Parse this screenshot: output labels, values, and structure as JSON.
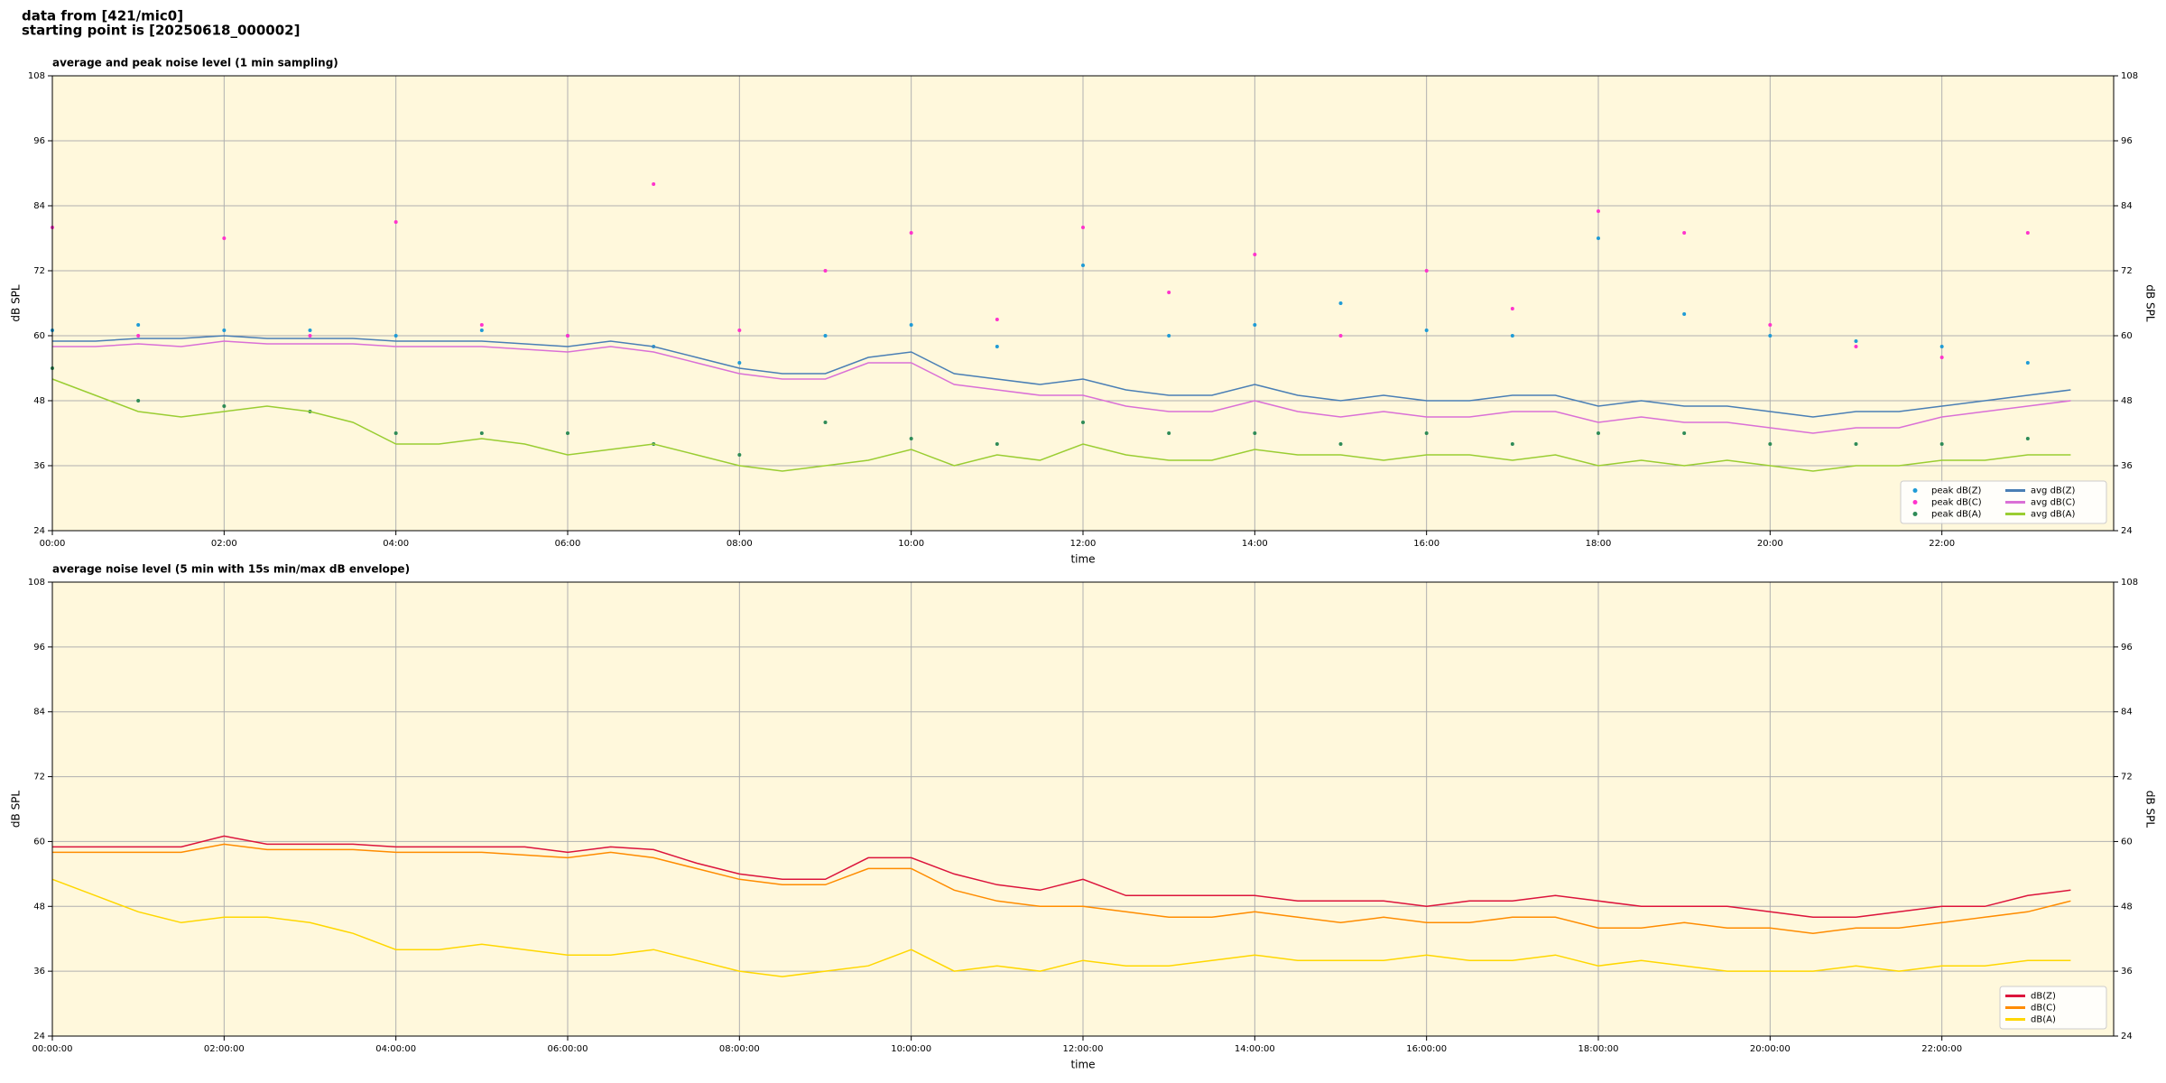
{
  "header": {
    "lines": [
      "data from [421/mic0]",
      "starting point is [20250618_000002]"
    ]
  },
  "chart_data": [
    {
      "type": "line",
      "title": "average and peak noise level (1 min sampling)",
      "xlabel": "time",
      "ylabel": "dB SPL",
      "background": "#fff8dc",
      "grid": true,
      "legend": "lower right",
      "xlim": [
        0,
        1440
      ],
      "xticks": [
        {
          "value": 0,
          "label": "00:00"
        },
        {
          "value": 120,
          "label": "02:00"
        },
        {
          "value": 240,
          "label": "04:00"
        },
        {
          "value": 360,
          "label": "06:00"
        },
        {
          "value": 480,
          "label": "08:00"
        },
        {
          "value": 600,
          "label": "10:00"
        },
        {
          "value": 720,
          "label": "12:00"
        },
        {
          "value": 840,
          "label": "14:00"
        },
        {
          "value": 960,
          "label": "16:00"
        },
        {
          "value": 1080,
          "label": "18:00"
        },
        {
          "value": 1200,
          "label": "20:00"
        },
        {
          "value": 1320,
          "label": "22:00"
        }
      ],
      "ylim": [
        24,
        108
      ],
      "yticks": [
        24,
        36,
        48,
        60,
        72,
        84,
        96,
        108
      ],
      "x": [
        0,
        30,
        60,
        90,
        120,
        150,
        180,
        210,
        240,
        270,
        300,
        330,
        360,
        390,
        420,
        450,
        480,
        510,
        540,
        570,
        600,
        630,
        660,
        690,
        720,
        750,
        780,
        810,
        840,
        870,
        900,
        930,
        960,
        990,
        1020,
        1050,
        1080,
        1110,
        1140,
        1170,
        1200,
        1230,
        1260,
        1290,
        1320,
        1350,
        1380,
        1410
      ],
      "series": [
        {
          "name": "peak dB(Z)",
          "type": "scatter",
          "color": "#1f9bd6",
          "x": [
            0,
            60,
            120,
            180,
            240,
            300,
            360,
            420,
            480,
            540,
            600,
            660,
            720,
            780,
            840,
            900,
            960,
            1020,
            1080,
            1140,
            1200,
            1260,
            1320,
            1380
          ],
          "values": [
            61,
            62,
            61,
            61,
            60,
            61,
            60,
            58,
            55,
            60,
            62,
            58,
            73,
            60,
            62,
            66,
            61,
            60,
            78,
            64,
            60,
            59,
            58,
            55
          ]
        },
        {
          "name": "peak dB(C)",
          "type": "scatter",
          "color": "#ff33cc",
          "x": [
            0,
            60,
            120,
            180,
            240,
            300,
            360,
            420,
            480,
            540,
            600,
            660,
            720,
            780,
            840,
            900,
            960,
            1020,
            1080,
            1140,
            1200,
            1260,
            1320,
            1380
          ],
          "values": [
            80,
            60,
            78,
            60,
            81,
            62,
            60,
            88,
            61,
            72,
            79,
            63,
            80,
            68,
            75,
            60,
            72,
            65,
            83,
            79,
            62,
            58,
            56,
            79
          ]
        },
        {
          "name": "peak dB(A)",
          "type": "scatter",
          "color": "#2e8b57",
          "x": [
            0,
            60,
            120,
            180,
            240,
            300,
            360,
            420,
            480,
            540,
            600,
            660,
            720,
            780,
            840,
            900,
            960,
            1020,
            1080,
            1140,
            1200,
            1260,
            1320,
            1380
          ],
          "values": [
            54,
            48,
            47,
            46,
            42,
            42,
            42,
            40,
            38,
            44,
            41,
            40,
            44,
            42,
            42,
            40,
            42,
            40,
            42,
            42,
            40,
            40,
            40,
            41
          ]
        },
        {
          "name": "avg dB(Z)",
          "type": "line",
          "color": "#4a7fb5",
          "values": [
            59,
            59,
            59.5,
            59.5,
            60,
            59.5,
            59.5,
            59.5,
            59,
            59,
            59,
            58.5,
            58,
            59,
            58,
            56,
            54,
            53,
            53,
            56,
            57,
            53,
            52,
            51,
            52,
            50,
            49,
            49,
            51,
            49,
            48,
            49,
            48,
            48,
            49,
            49,
            47,
            48,
            47,
            47,
            46,
            45,
            46,
            46,
            47,
            48,
            49,
            50
          ]
        },
        {
          "name": "avg dB(C)",
          "type": "line",
          "color": "#da70d6",
          "values": [
            58,
            58,
            58.5,
            58,
            59,
            58.5,
            58.5,
            58.5,
            58,
            58,
            58,
            57.5,
            57,
            58,
            57,
            55,
            53,
            52,
            52,
            55,
            55,
            51,
            50,
            49,
            49,
            47,
            46,
            46,
            48,
            46,
            45,
            46,
            45,
            45,
            46,
            46,
            44,
            45,
            44,
            44,
            43,
            42,
            43,
            43,
            45,
            46,
            47,
            48
          ]
        },
        {
          "name": "avg dB(A)",
          "type": "line",
          "color": "#9acd32",
          "values": [
            52,
            49,
            46,
            45,
            46,
            47,
            46,
            44,
            40,
            40,
            41,
            40,
            38,
            39,
            40,
            38,
            36,
            35,
            36,
            37,
            39,
            36,
            38,
            37,
            40,
            38,
            37,
            37,
            39,
            38,
            38,
            37,
            38,
            38,
            37,
            38,
            36,
            37,
            36,
            37,
            36,
            35,
            36,
            36,
            37,
            37,
            38,
            38
          ]
        }
      ]
    },
    {
      "type": "line",
      "title": "average noise level (5 min with 15s min/max dB envelope)",
      "xlabel": "time",
      "ylabel": "dB SPL",
      "background": "#fff8dc",
      "grid": true,
      "legend": "lower right",
      "xlim": [
        0,
        1440
      ],
      "xticks": [
        {
          "value": 0,
          "label": "00:00:00"
        },
        {
          "value": 120,
          "label": "02:00:00"
        },
        {
          "value": 240,
          "label": "04:00:00"
        },
        {
          "value": 360,
          "label": "06:00:00"
        },
        {
          "value": 480,
          "label": "08:00:00"
        },
        {
          "value": 600,
          "label": "10:00:00"
        },
        {
          "value": 720,
          "label": "12:00:00"
        },
        {
          "value": 840,
          "label": "14:00:00"
        },
        {
          "value": 960,
          "label": "16:00:00"
        },
        {
          "value": 1080,
          "label": "18:00:00"
        },
        {
          "value": 1200,
          "label": "20:00:00"
        },
        {
          "value": 1320,
          "label": "22:00:00"
        }
      ],
      "ylim": [
        24,
        108
      ],
      "yticks": [
        24,
        36,
        48,
        60,
        72,
        84,
        96,
        108
      ],
      "x": [
        0,
        30,
        60,
        90,
        120,
        150,
        180,
        210,
        240,
        270,
        300,
        330,
        360,
        390,
        420,
        450,
        480,
        510,
        540,
        570,
        600,
        630,
        660,
        690,
        720,
        750,
        780,
        810,
        840,
        870,
        900,
        930,
        960,
        990,
        1020,
        1050,
        1080,
        1110,
        1140,
        1170,
        1200,
        1230,
        1260,
        1290,
        1320,
        1350,
        1380,
        1410
      ],
      "series": [
        {
          "name": "dB(Z)",
          "type": "line",
          "color": "#dc143c",
          "values": [
            59,
            59,
            59,
            59,
            61,
            59.5,
            59.5,
            59.5,
            59,
            59,
            59,
            59,
            58,
            59,
            58.5,
            56,
            54,
            53,
            53,
            57,
            57,
            54,
            52,
            51,
            53,
            50,
            50,
            50,
            50,
            49,
            49,
            49,
            48,
            49,
            49,
            50,
            49,
            48,
            48,
            48,
            47,
            46,
            46,
            47,
            48,
            48,
            50,
            51
          ]
        },
        {
          "name": "dB(C)",
          "type": "line",
          "color": "#ff8c00",
          "values": [
            58,
            58,
            58,
            58,
            59.5,
            58.5,
            58.5,
            58.5,
            58,
            58,
            58,
            57.5,
            57,
            58,
            57,
            55,
            53,
            52,
            52,
            55,
            55,
            51,
            49,
            48,
            48,
            47,
            46,
            46,
            47,
            46,
            45,
            46,
            45,
            45,
            46,
            46,
            44,
            44,
            45,
            44,
            44,
            43,
            44,
            44,
            45,
            46,
            47,
            49
          ]
        },
        {
          "name": "dB(A)",
          "type": "line",
          "color": "#ffd700",
          "values": [
            53,
            50,
            47,
            45,
            46,
            46,
            45,
            43,
            40,
            40,
            41,
            40,
            39,
            39,
            40,
            38,
            36,
            35,
            36,
            37,
            40,
            36,
            37,
            36,
            38,
            37,
            37,
            38,
            39,
            38,
            38,
            38,
            39,
            38,
            38,
            39,
            37,
            38,
            37,
            36,
            36,
            36,
            37,
            36,
            37,
            37,
            38,
            38
          ]
        }
      ]
    }
  ]
}
